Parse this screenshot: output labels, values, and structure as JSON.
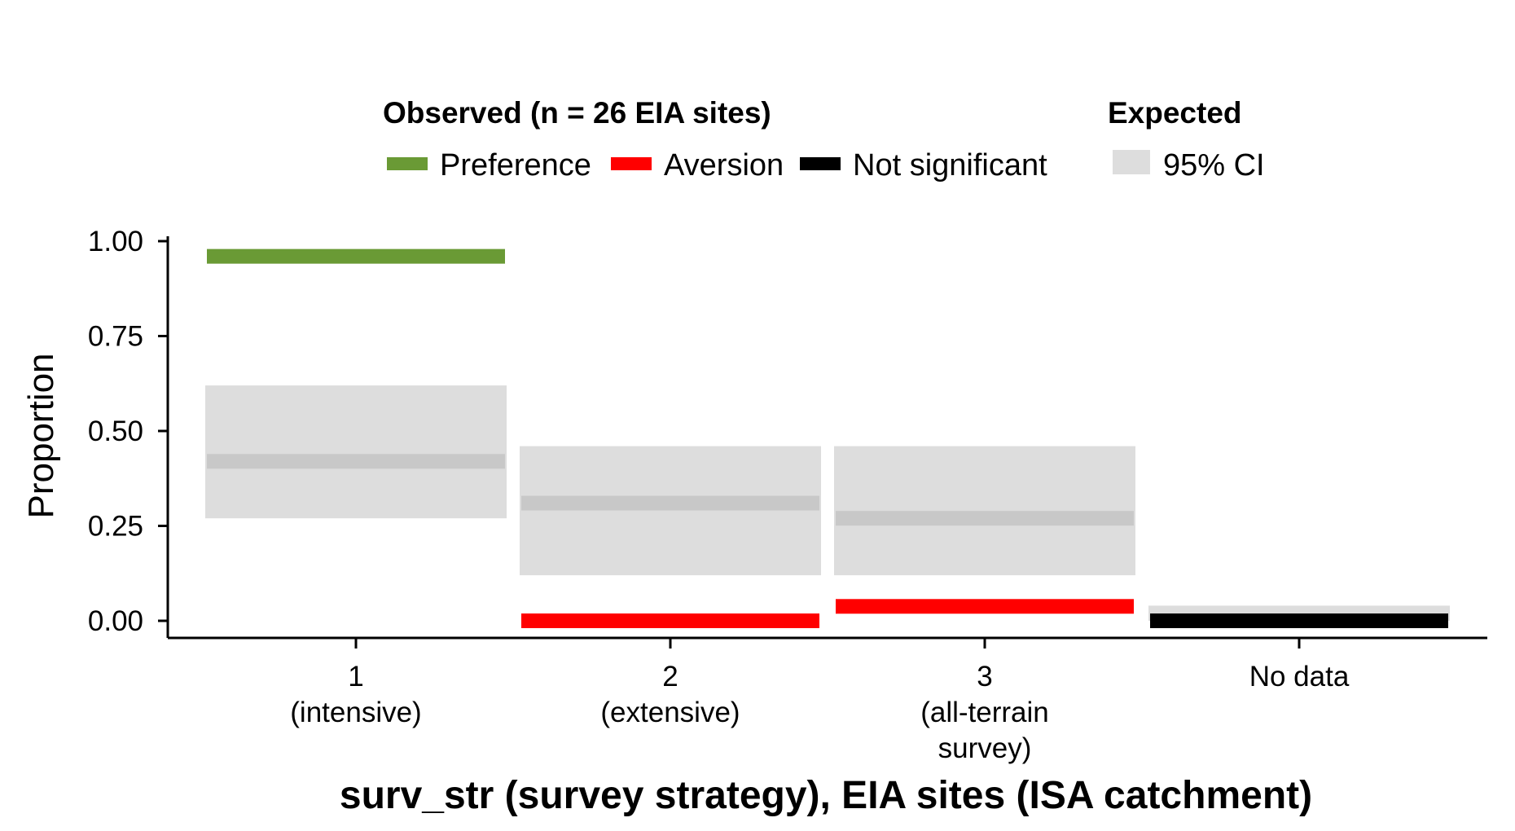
{
  "chart_data": {
    "type": "bar",
    "title": "",
    "xlabel": "surv_str (survey strategy), EIA sites (ISA catchment)",
    "ylabel": "Proportion",
    "ylim": [
      0,
      1
    ],
    "y_ticks": [
      "0.00",
      "0.25",
      "0.50",
      "0.75",
      "1.00"
    ],
    "y_tick_values": [
      0,
      0.25,
      0.5,
      0.75,
      1.0
    ],
    "grid": false,
    "legend_position": "top",
    "legend": {
      "observed_title": "Observed (n = 26 EIA sites)",
      "expected_title": "Expected",
      "items": [
        {
          "label": "Preference",
          "color": "#6a9a35"
        },
        {
          "label": "Aversion",
          "color": "#ff0000"
        },
        {
          "label": "Not significant",
          "color": "#000000"
        },
        {
          "label": "95% CI",
          "color": "#dddddd"
        }
      ]
    },
    "categories": [
      {
        "line1": "1",
        "line2": "(intensive)",
        "line3": ""
      },
      {
        "line1": "2",
        "line2": "(extensive)",
        "line3": ""
      },
      {
        "line1": "3",
        "line2": "(all-terrain",
        "line3": "survey)"
      },
      {
        "line1": "No data",
        "line2": "",
        "line3": ""
      }
    ],
    "observed": [
      {
        "value": 0.96,
        "status": "Preference"
      },
      {
        "value": 0.0,
        "status": "Aversion"
      },
      {
        "value": 0.038,
        "status": "Aversion"
      },
      {
        "value": 0.0,
        "status": "Not significant"
      }
    ],
    "expected": [
      {
        "mean": 0.42,
        "ci_low": 0.27,
        "ci_high": 0.62
      },
      {
        "mean": 0.31,
        "ci_low": 0.12,
        "ci_high": 0.46
      },
      {
        "mean": 0.27,
        "ci_low": 0.12,
        "ci_high": 0.46
      },
      {
        "mean": 0.0,
        "ci_low": 0.0,
        "ci_high": 0.04
      }
    ]
  }
}
